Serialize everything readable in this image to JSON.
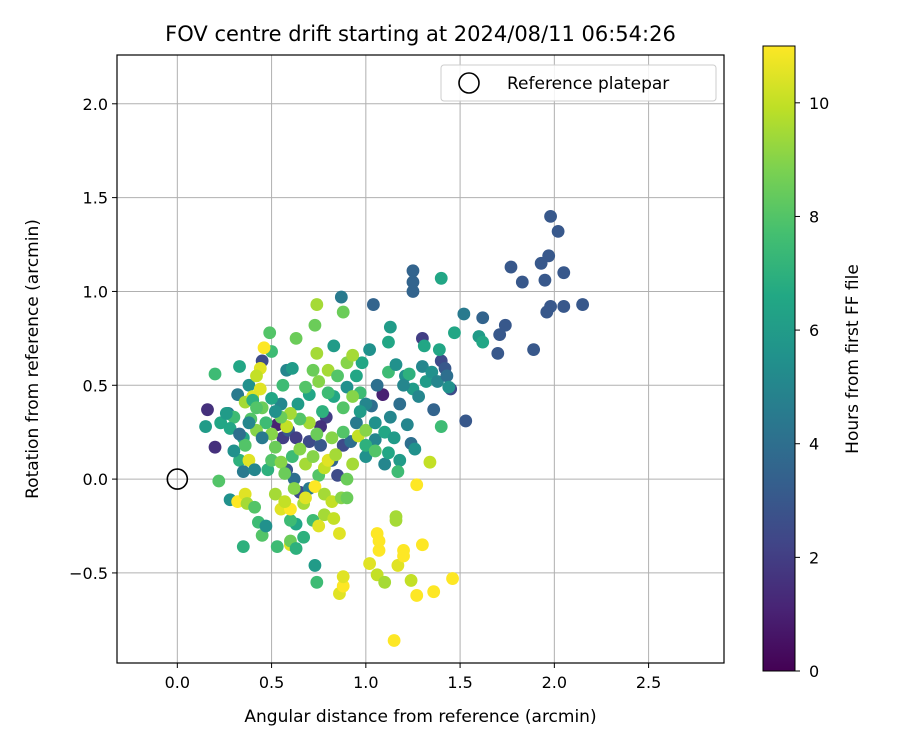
{
  "chart_data": {
    "type": "scatter",
    "title": "FOV centre drift starting at 2024/08/11 06:54:26",
    "xlabel": "Angular distance from reference (arcmin)",
    "ylabel": "Rotation from reference (arcmin)",
    "xlim": [
      -0.32,
      2.9
    ],
    "ylim": [
      -0.98,
      2.26
    ],
    "xticks": [
      0.0,
      0.5,
      1.0,
      1.5,
      2.0,
      2.5
    ],
    "xtick_labels": [
      "0.0",
      "0.5",
      "1.0",
      "1.5",
      "2.0",
      "2.5"
    ],
    "yticks": [
      -0.5,
      0.0,
      0.5,
      1.0,
      1.5,
      2.0
    ],
    "ytick_labels": [
      "−0.5",
      "0.0",
      "0.5",
      "1.0",
      "1.5",
      "2.0"
    ],
    "grid": true,
    "legend": {
      "label": "Reference platepar",
      "placement": "top-right"
    },
    "reference_point": {
      "x": 0.0,
      "y": 0.0
    },
    "colorbar": {
      "label": "Hours from first FF file",
      "colormap": "viridis",
      "range": [
        0,
        11
      ],
      "ticks": [
        0,
        2,
        4,
        6,
        8,
        10
      ],
      "tick_labels": [
        "0",
        "2",
        "4",
        "6",
        "8",
        "10"
      ]
    },
    "points": [
      {
        "x": 1.98,
        "y": 1.4,
        "h": 3.0
      },
      {
        "x": 2.02,
        "y": 1.32,
        "h": 3.0
      },
      {
        "x": 1.97,
        "y": 1.19,
        "h": 3.0
      },
      {
        "x": 1.93,
        "y": 1.15,
        "h": 3.0
      },
      {
        "x": 1.77,
        "y": 1.13,
        "h": 3.0
      },
      {
        "x": 2.05,
        "y": 1.1,
        "h": 3.0
      },
      {
        "x": 1.95,
        "y": 1.06,
        "h": 3.0
      },
      {
        "x": 1.83,
        "y": 1.05,
        "h": 3.0
      },
      {
        "x": 1.98,
        "y": 0.92,
        "h": 3.0
      },
      {
        "x": 2.05,
        "y": 0.92,
        "h": 3.0
      },
      {
        "x": 2.15,
        "y": 0.93,
        "h": 3.0
      },
      {
        "x": 1.96,
        "y": 0.89,
        "h": 3.0
      },
      {
        "x": 1.74,
        "y": 0.82,
        "h": 3.0
      },
      {
        "x": 1.71,
        "y": 0.77,
        "h": 3.0
      },
      {
        "x": 1.7,
        "y": 0.67,
        "h": 3.0
      },
      {
        "x": 1.89,
        "y": 0.69,
        "h": 3.0
      },
      {
        "x": 1.62,
        "y": 0.86,
        "h": 3.5
      },
      {
        "x": 1.52,
        "y": 0.88,
        "h": 4.5
      },
      {
        "x": 1.25,
        "y": 1.11,
        "h": 3.5
      },
      {
        "x": 1.25,
        "y": 1.05,
        "h": 3.5
      },
      {
        "x": 1.25,
        "y": 1.0,
        "h": 3.5
      },
      {
        "x": 1.4,
        "y": 1.07,
        "h": 6.5
      },
      {
        "x": 1.04,
        "y": 0.93,
        "h": 3.5
      },
      {
        "x": 0.87,
        "y": 0.97,
        "h": 4.5
      },
      {
        "x": 1.3,
        "y": 0.75,
        "h": 2.0
      },
      {
        "x": 1.4,
        "y": 0.63,
        "h": 2.5
      },
      {
        "x": 1.42,
        "y": 0.59,
        "h": 3.0
      },
      {
        "x": 1.45,
        "y": 0.48,
        "h": 2.5
      },
      {
        "x": 1.53,
        "y": 0.31,
        "h": 3.0
      },
      {
        "x": 1.36,
        "y": 0.37,
        "h": 3.5
      },
      {
        "x": 1.6,
        "y": 0.76,
        "h": 6.0
      },
      {
        "x": 1.62,
        "y": 0.73,
        "h": 6.5
      },
      {
        "x": 1.47,
        "y": 0.78,
        "h": 6.5
      },
      {
        "x": 1.39,
        "y": 0.69,
        "h": 6.5
      },
      {
        "x": 1.31,
        "y": 0.71,
        "h": 6.5
      },
      {
        "x": 1.3,
        "y": 0.6,
        "h": 5.0
      },
      {
        "x": 1.21,
        "y": 0.55,
        "h": 5.5
      },
      {
        "x": 1.25,
        "y": 0.48,
        "h": 6.0
      },
      {
        "x": 1.18,
        "y": 0.4,
        "h": 4.0
      },
      {
        "x": 1.12,
        "y": 0.57,
        "h": 7.5
      },
      {
        "x": 1.12,
        "y": 0.73,
        "h": 6.5
      },
      {
        "x": 1.13,
        "y": 0.81,
        "h": 6.0
      },
      {
        "x": 0.98,
        "y": 0.62,
        "h": 6.5
      },
      {
        "x": 1.02,
        "y": 0.69,
        "h": 5.5
      },
      {
        "x": 0.83,
        "y": 0.71,
        "h": 6.0
      },
      {
        "x": 1.09,
        "y": 0.45,
        "h": 1.0
      },
      {
        "x": 1.06,
        "y": 0.5,
        "h": 4.0
      },
      {
        "x": 1.22,
        "y": 0.29,
        "h": 5.0
      },
      {
        "x": 1.24,
        "y": 0.19,
        "h": 4.0
      },
      {
        "x": 1.26,
        "y": 0.16,
        "h": 5.5
      },
      {
        "x": 1.18,
        "y": 0.1,
        "h": 6.0
      },
      {
        "x": 1.17,
        "y": 0.04,
        "h": 7.5
      },
      {
        "x": 1.05,
        "y": 0.21,
        "h": 5.0
      },
      {
        "x": 1.0,
        "y": 0.12,
        "h": 5.5
      },
      {
        "x": 1.4,
        "y": 0.28,
        "h": 7.5
      },
      {
        "x": 1.34,
        "y": 0.09,
        "h": 10.0
      },
      {
        "x": 1.27,
        "y": -0.03,
        "h": 11.0
      },
      {
        "x": 0.16,
        "y": 0.37,
        "h": 1.5
      },
      {
        "x": 0.2,
        "y": 0.17,
        "h": 1.5
      },
      {
        "x": 0.15,
        "y": 0.28,
        "h": 6.0
      },
      {
        "x": 0.2,
        "y": 0.56,
        "h": 7.5
      },
      {
        "x": 0.23,
        "y": 0.3,
        "h": 6.5
      },
      {
        "x": 0.27,
        "y": 0.35,
        "h": 4.5
      },
      {
        "x": 0.33,
        "y": 0.6,
        "h": 6.5
      },
      {
        "x": 0.32,
        "y": 0.45,
        "h": 4.5
      },
      {
        "x": 0.38,
        "y": 0.5,
        "h": 5.5
      },
      {
        "x": 0.45,
        "y": 0.63,
        "h": 2.5
      },
      {
        "x": 0.5,
        "y": 0.68,
        "h": 7.5
      },
      {
        "x": 0.49,
        "y": 0.78,
        "h": 8.0
      },
      {
        "x": 0.63,
        "y": 0.75,
        "h": 8.5
      },
      {
        "x": 0.74,
        "y": 0.93,
        "h": 9.5
      },
      {
        "x": 0.88,
        "y": 0.89,
        "h": 8.5
      },
      {
        "x": 0.73,
        "y": 0.82,
        "h": 8.5
      },
      {
        "x": 0.58,
        "y": 0.58,
        "h": 5.0
      },
      {
        "x": 0.61,
        "y": 0.59,
        "h": 6.0
      },
      {
        "x": 0.56,
        "y": 0.5,
        "h": 7.5
      },
      {
        "x": 0.46,
        "y": 0.7,
        "h": 11.0
      },
      {
        "x": 0.44,
        "y": 0.59,
        "h": 10.5
      },
      {
        "x": 0.42,
        "y": 0.55,
        "h": 10.0
      },
      {
        "x": 0.44,
        "y": 0.48,
        "h": 10.5
      },
      {
        "x": 0.36,
        "y": 0.41,
        "h": 9.5
      },
      {
        "x": 0.4,
        "y": 0.44,
        "h": 10.5
      },
      {
        "x": 0.3,
        "y": 0.33,
        "h": 7.5
      },
      {
        "x": 0.35,
        "y": 0.22,
        "h": 6.5
      },
      {
        "x": 0.33,
        "y": 0.1,
        "h": 7.0
      },
      {
        "x": 0.36,
        "y": 0.18,
        "h": 8.0
      },
      {
        "x": 0.38,
        "y": 0.1,
        "h": 10.5
      },
      {
        "x": 0.35,
        "y": 0.04,
        "h": 4.5
      },
      {
        "x": 0.41,
        "y": 0.05,
        "h": 5.0
      },
      {
        "x": 0.28,
        "y": -0.11,
        "h": 5.5
      },
      {
        "x": 0.32,
        "y": -0.12,
        "h": 11.0
      },
      {
        "x": 0.36,
        "y": -0.08,
        "h": 10.5
      },
      {
        "x": 0.37,
        "y": -0.13,
        "h": 9.5
      },
      {
        "x": 0.41,
        "y": -0.15,
        "h": 8.0
      },
      {
        "x": 0.43,
        "y": -0.23,
        "h": 7.5
      },
      {
        "x": 0.45,
        "y": -0.3,
        "h": 8.0
      },
      {
        "x": 0.47,
        "y": -0.25,
        "h": 5.5
      },
      {
        "x": 0.35,
        "y": -0.36,
        "h": 7.0
      },
      {
        "x": 0.53,
        "y": -0.36,
        "h": 7.5
      },
      {
        "x": 0.6,
        "y": -0.35,
        "h": 10.5
      },
      {
        "x": 0.6,
        "y": -0.33,
        "h": 8.5
      },
      {
        "x": 0.63,
        "y": -0.37,
        "h": 7.0
      },
      {
        "x": 0.67,
        "y": -0.31,
        "h": 7.0
      },
      {
        "x": 0.63,
        "y": -0.24,
        "h": 6.5
      },
      {
        "x": 0.6,
        "y": -0.22,
        "h": 7.5
      },
      {
        "x": 0.55,
        "y": -0.16,
        "h": 10.5
      },
      {
        "x": 0.6,
        "y": -0.16,
        "h": 11.0
      },
      {
        "x": 0.67,
        "y": -0.13,
        "h": 9.5
      },
      {
        "x": 0.72,
        "y": -0.22,
        "h": 7.5
      },
      {
        "x": 0.75,
        "y": -0.25,
        "h": 10.5
      },
      {
        "x": 0.78,
        "y": -0.19,
        "h": 9.5
      },
      {
        "x": 0.83,
        "y": -0.21,
        "h": 10.0
      },
      {
        "x": 0.86,
        "y": -0.29,
        "h": 10.5
      },
      {
        "x": 0.73,
        "y": -0.46,
        "h": 6.0
      },
      {
        "x": 0.74,
        "y": -0.55,
        "h": 7.5
      },
      {
        "x": 0.86,
        "y": -0.61,
        "h": 10.5
      },
      {
        "x": 0.88,
        "y": -0.57,
        "h": 11.0
      },
      {
        "x": 0.88,
        "y": -0.52,
        "h": 10.5
      },
      {
        "x": 1.02,
        "y": -0.45,
        "h": 10.5
      },
      {
        "x": 1.06,
        "y": -0.51,
        "h": 10.0
      },
      {
        "x": 1.1,
        "y": -0.55,
        "h": 9.5
      },
      {
        "x": 1.07,
        "y": -0.38,
        "h": 11.0
      },
      {
        "x": 1.06,
        "y": -0.29,
        "h": 11.0
      },
      {
        "x": 1.07,
        "y": -0.33,
        "h": 11.0
      },
      {
        "x": 1.16,
        "y": -0.2,
        "h": 9.5
      },
      {
        "x": 1.16,
        "y": -0.22,
        "h": 9.5
      },
      {
        "x": 1.17,
        "y": -0.46,
        "h": 10.5
      },
      {
        "x": 1.2,
        "y": -0.38,
        "h": 11.0
      },
      {
        "x": 1.2,
        "y": -0.41,
        "h": 11.0
      },
      {
        "x": 1.24,
        "y": -0.54,
        "h": 10.0
      },
      {
        "x": 1.27,
        "y": -0.62,
        "h": 11.0
      },
      {
        "x": 1.3,
        "y": -0.35,
        "h": 11.0
      },
      {
        "x": 1.36,
        "y": -0.6,
        "h": 11.0
      },
      {
        "x": 1.46,
        "y": -0.53,
        "h": 11.0
      },
      {
        "x": 1.15,
        "y": -0.86,
        "h": 11.0
      },
      {
        "x": 0.22,
        "y": -0.01,
        "h": 8.0
      },
      {
        "x": 0.28,
        "y": 0.27,
        "h": 6.5
      },
      {
        "x": 0.26,
        "y": 0.35,
        "h": 6.0
      },
      {
        "x": 0.53,
        "y": 0.29,
        "h": 1.0
      },
      {
        "x": 0.56,
        "y": 0.22,
        "h": 2.0
      },
      {
        "x": 0.59,
        "y": 0.26,
        "h": 3.0
      },
      {
        "x": 0.63,
        "y": 0.22,
        "h": 2.0
      },
      {
        "x": 0.7,
        "y": 0.2,
        "h": 2.5
      },
      {
        "x": 0.76,
        "y": 0.18,
        "h": 3.0
      },
      {
        "x": 0.79,
        "y": 0.33,
        "h": 2.0
      },
      {
        "x": 0.76,
        "y": 0.28,
        "h": 1.5
      },
      {
        "x": 0.58,
        "y": 0.05,
        "h": 3.0
      },
      {
        "x": 0.62,
        "y": 0.0,
        "h": 4.0
      },
      {
        "x": 0.65,
        "y": -0.07,
        "h": 2.5
      },
      {
        "x": 0.7,
        "y": -0.05,
        "h": 4.5
      },
      {
        "x": 0.82,
        "y": 0.1,
        "h": 3.5
      },
      {
        "x": 0.88,
        "y": 0.18,
        "h": 2.5
      },
      {
        "x": 0.92,
        "y": 0.2,
        "h": 4.0
      },
      {
        "x": 0.95,
        "y": 0.3,
        "h": 4.5
      },
      {
        "x": 1.03,
        "y": 0.39,
        "h": 4.0
      },
      {
        "x": 0.85,
        "y": 0.02,
        "h": 2.5
      },
      {
        "x": 0.55,
        "y": 0.4,
        "h": 5.0
      },
      {
        "x": 0.64,
        "y": 0.4,
        "h": 6.0
      },
      {
        "x": 0.7,
        "y": 0.45,
        "h": 6.5
      },
      {
        "x": 0.77,
        "y": 0.36,
        "h": 7.0
      },
      {
        "x": 0.83,
        "y": 0.44,
        "h": 6.5
      },
      {
        "x": 0.9,
        "y": 0.49,
        "h": 5.5
      },
      {
        "x": 0.95,
        "y": 0.55,
        "h": 6.5
      },
      {
        "x": 0.97,
        "y": 0.46,
        "h": 7.5
      },
      {
        "x": 1.0,
        "y": 0.4,
        "h": 5.0
      },
      {
        "x": 0.48,
        "y": 0.05,
        "h": 7.0
      },
      {
        "x": 0.5,
        "y": 0.1,
        "h": 8.0
      },
      {
        "x": 0.52,
        "y": 0.17,
        "h": 8.5
      },
      {
        "x": 0.55,
        "y": 0.09,
        "h": 9.0
      },
      {
        "x": 0.57,
        "y": 0.03,
        "h": 8.5
      },
      {
        "x": 0.61,
        "y": 0.12,
        "h": 7.5
      },
      {
        "x": 0.65,
        "y": 0.16,
        "h": 9.0
      },
      {
        "x": 0.68,
        "y": 0.08,
        "h": 9.5
      },
      {
        "x": 0.72,
        "y": 0.12,
        "h": 9.0
      },
      {
        "x": 0.75,
        "y": 0.02,
        "h": 8.0
      },
      {
        "x": 0.78,
        "y": 0.06,
        "h": 10.0
      },
      {
        "x": 0.8,
        "y": 0.1,
        "h": 10.5
      },
      {
        "x": 0.84,
        "y": 0.13,
        "h": 9.5
      },
      {
        "x": 0.9,
        "y": 0.0,
        "h": 8.5
      },
      {
        "x": 0.93,
        "y": 0.08,
        "h": 9.5
      },
      {
        "x": 0.96,
        "y": 0.23,
        "h": 10.0
      },
      {
        "x": 1.0,
        "y": 0.26,
        "h": 9.0
      },
      {
        "x": 0.88,
        "y": 0.25,
        "h": 8.0
      },
      {
        "x": 0.82,
        "y": 0.22,
        "h": 9.0
      },
      {
        "x": 0.74,
        "y": 0.24,
        "h": 8.5
      },
      {
        "x": 0.7,
        "y": 0.3,
        "h": 9.5
      },
      {
        "x": 0.65,
        "y": 0.32,
        "h": 8.0
      },
      {
        "x": 0.6,
        "y": 0.35,
        "h": 9.5
      },
      {
        "x": 0.58,
        "y": 0.28,
        "h": 10.0
      },
      {
        "x": 0.55,
        "y": 0.33,
        "h": 8.5
      },
      {
        "x": 0.5,
        "y": 0.24,
        "h": 9.0
      },
      {
        "x": 0.47,
        "y": 0.3,
        "h": 7.5
      },
      {
        "x": 0.45,
        "y": 0.38,
        "h": 8.5
      },
      {
        "x": 0.42,
        "y": 0.26,
        "h": 9.0
      },
      {
        "x": 0.39,
        "y": 0.32,
        "h": 8.0
      },
      {
        "x": 0.52,
        "y": -0.08,
        "h": 9.5
      },
      {
        "x": 0.57,
        "y": -0.12,
        "h": 10.0
      },
      {
        "x": 0.62,
        "y": -0.05,
        "h": 9.0
      },
      {
        "x": 0.68,
        "y": -0.1,
        "h": 10.5
      },
      {
        "x": 0.73,
        "y": -0.04,
        "h": 11.0
      },
      {
        "x": 0.78,
        "y": -0.08,
        "h": 9.5
      },
      {
        "x": 0.82,
        "y": -0.12,
        "h": 10.0
      },
      {
        "x": 0.87,
        "y": -0.1,
        "h": 9.0
      },
      {
        "x": 0.9,
        "y": -0.1,
        "h": 8.5
      },
      {
        "x": 0.75,
        "y": 0.52,
        "h": 9.0
      },
      {
        "x": 0.8,
        "y": 0.58,
        "h": 9.5
      },
      {
        "x": 0.85,
        "y": 0.55,
        "h": 8.0
      },
      {
        "x": 0.9,
        "y": 0.62,
        "h": 9.0
      },
      {
        "x": 0.93,
        "y": 0.66,
        "h": 9.5
      },
      {
        "x": 0.74,
        "y": 0.67,
        "h": 9.5
      },
      {
        "x": 0.72,
        "y": 0.58,
        "h": 8.5
      },
      {
        "x": 0.68,
        "y": 0.49,
        "h": 8.0
      },
      {
        "x": 0.8,
        "y": 0.46,
        "h": 7.5
      },
      {
        "x": 0.88,
        "y": 0.38,
        "h": 8.0
      },
      {
        "x": 0.93,
        "y": 0.44,
        "h": 9.0
      },
      {
        "x": 0.97,
        "y": 0.36,
        "h": 6.0
      },
      {
        "x": 1.05,
        "y": 0.3,
        "h": 5.5
      },
      {
        "x": 1.1,
        "y": 0.25,
        "h": 6.5
      },
      {
        "x": 1.13,
        "y": 0.33,
        "h": 5.0
      },
      {
        "x": 1.15,
        "y": 0.22,
        "h": 6.0
      },
      {
        "x": 1.2,
        "y": 0.5,
        "h": 5.0
      },
      {
        "x": 1.16,
        "y": 0.61,
        "h": 5.5
      },
      {
        "x": 1.23,
        "y": 0.56,
        "h": 7.0
      },
      {
        "x": 1.28,
        "y": 0.44,
        "h": 5.0
      },
      {
        "x": 1.32,
        "y": 0.52,
        "h": 6.0
      },
      {
        "x": 1.35,
        "y": 0.57,
        "h": 5.5
      },
      {
        "x": 1.38,
        "y": 0.52,
        "h": 5.0
      },
      {
        "x": 1.43,
        "y": 0.55,
        "h": 4.0
      },
      {
        "x": 1.44,
        "y": 0.49,
        "h": 5.5
      },
      {
        "x": 1.0,
        "y": 0.18,
        "h": 7.0
      },
      {
        "x": 1.05,
        "y": 0.15,
        "h": 8.0
      },
      {
        "x": 1.1,
        "y": 0.08,
        "h": 5.0
      },
      {
        "x": 1.12,
        "y": 0.14,
        "h": 6.5
      },
      {
        "x": 0.3,
        "y": 0.15,
        "h": 5.5
      },
      {
        "x": 0.33,
        "y": 0.24,
        "h": 4.0
      },
      {
        "x": 0.38,
        "y": 0.3,
        "h": 5.0
      },
      {
        "x": 0.45,
        "y": 0.22,
        "h": 4.5
      },
      {
        "x": 0.5,
        "y": 0.43,
        "h": 6.5
      },
      {
        "x": 0.52,
        "y": 0.36,
        "h": 5.5
      },
      {
        "x": 0.4,
        "y": 0.42,
        "h": 7.0
      },
      {
        "x": 0.42,
        "y": 0.38,
        "h": 8.0
      }
    ]
  }
}
